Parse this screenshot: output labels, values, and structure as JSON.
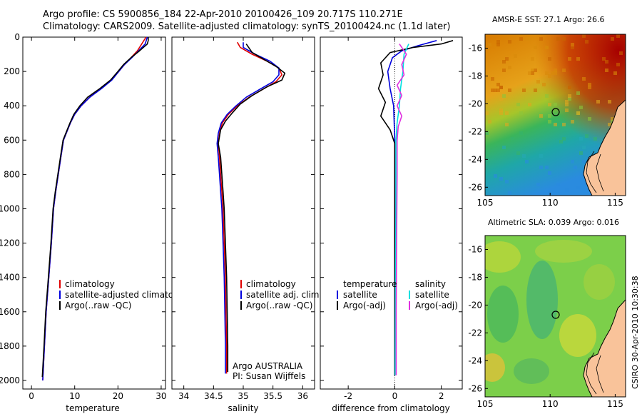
{
  "header": {
    "line1": "Argo profile: CS 5900856_184 22-Apr-2010 20100426_109 20.717S 110.271E",
    "line2": "Climatology: CARS2009. Satellite-adjusted climatology: synTS_20100424.nc (1.1d later)"
  },
  "colors": {
    "climatology": "#e00000",
    "satellite": "#0000dd",
    "argo": "#000000",
    "sat_salinity": "#00e0e0",
    "argo_salinity": "#e030e0",
    "land": "#f9c39a"
  },
  "chart_data": [
    {
      "type": "line",
      "name": "temperature-profile",
      "xlabel": "temperature",
      "xlim": [
        -2,
        31
      ],
      "ylim": [
        2050,
        0
      ],
      "xticks": [
        "0",
        "10",
        "20",
        "30"
      ],
      "yticks": [
        "0",
        "200",
        "400",
        "600",
        "800",
        "1000",
        "1200",
        "1400",
        "1600",
        "1800",
        "2000"
      ],
      "legend": [
        "climatology",
        "satellite-adjusted climatology",
        "Argo(..raw -QC)"
      ],
      "series": [
        {
          "name": "climatology",
          "color": "#e00000",
          "points": [
            [
              26.5,
              0
            ],
            [
              25.5,
              40
            ],
            [
              24.5,
              80
            ],
            [
              23,
              120
            ],
            [
              21.5,
              160
            ],
            [
              20.2,
              200
            ],
            [
              18.5,
              250
            ],
            [
              16,
              300
            ],
            [
              13.5,
              350
            ],
            [
              11.5,
              400
            ],
            [
              10,
              450
            ],
            [
              9,
              500
            ],
            [
              8.2,
              550
            ],
            [
              7.4,
              600
            ],
            [
              6.8,
              700
            ],
            [
              6.2,
              800
            ],
            [
              5.6,
              900
            ],
            [
              5.1,
              1000
            ],
            [
              4.6,
              1200
            ],
            [
              4,
              1400
            ],
            [
              3.4,
              1600
            ],
            [
              3.0,
              1800
            ],
            [
              2.6,
              2000
            ]
          ]
        },
        {
          "name": "satellite-adjusted climatology",
          "color": "#0000dd",
          "points": [
            [
              26.8,
              0
            ],
            [
              26.3,
              40
            ],
            [
              24.8,
              80
            ],
            [
              23.2,
              120
            ],
            [
              21.5,
              160
            ],
            [
              20.2,
              200
            ],
            [
              18.6,
              250
            ],
            [
              16.2,
              300
            ],
            [
              13.5,
              350
            ],
            [
              11.5,
              400
            ],
            [
              10,
              450
            ],
            [
              9,
              500
            ],
            [
              8.2,
              550
            ],
            [
              7.4,
              600
            ],
            [
              6.8,
              700
            ],
            [
              6.2,
              800
            ],
            [
              5.6,
              900
            ],
            [
              5.1,
              1000
            ],
            [
              4.6,
              1200
            ],
            [
              4,
              1400
            ],
            [
              3.4,
              1600
            ],
            [
              3.0,
              1800
            ],
            [
              2.6,
              2000
            ]
          ]
        },
        {
          "name": "Argo(..raw -QC)",
          "color": "#000000",
          "points": [
            [
              27,
              0
            ],
            [
              27,
              20
            ],
            [
              26.8,
              40
            ],
            [
              25,
              80
            ],
            [
              23,
              120
            ],
            [
              21.3,
              160
            ],
            [
              20,
              200
            ],
            [
              18.3,
              250
            ],
            [
              15.8,
              300
            ],
            [
              13,
              350
            ],
            [
              11.2,
              400
            ],
            [
              9.8,
              450
            ],
            [
              8.9,
              500
            ],
            [
              8.1,
              550
            ],
            [
              7.3,
              600
            ],
            [
              6.7,
              700
            ],
            [
              6.1,
              800
            ],
            [
              5.5,
              900
            ],
            [
              5.0,
              1000
            ],
            [
              4.5,
              1200
            ],
            [
              3.9,
              1400
            ],
            [
              3.3,
              1600
            ],
            [
              2.9,
              1800
            ],
            [
              2.5,
              1980
            ]
          ]
        }
      ]
    },
    {
      "type": "line",
      "name": "salinity-profile",
      "xlabel": "salinity",
      "xlim": [
        33.8,
        36.2
      ],
      "ylim": [
        2050,
        0
      ],
      "xticks": [
        "34",
        "34.5",
        "35",
        "35.5",
        "36"
      ],
      "legend": [
        "climatology",
        "satellite adj. clim.",
        "Argo(..raw -QC)"
      ],
      "annotations": [
        "Argo AUSTRALIA",
        "PI: Susan Wijffels"
      ],
      "series": [
        {
          "name": "climatology",
          "color": "#e00000",
          "points": [
            [
              34.9,
              30
            ],
            [
              34.95,
              60
            ],
            [
              35.15,
              100
            ],
            [
              35.4,
              140
            ],
            [
              35.6,
              180
            ],
            [
              35.65,
              220
            ],
            [
              35.55,
              260
            ],
            [
              35.35,
              300
            ],
            [
              35.1,
              350
            ],
            [
              34.9,
              400
            ],
            [
              34.75,
              450
            ],
            [
              34.65,
              500
            ],
            [
              34.6,
              560
            ],
            [
              34.58,
              620
            ],
            [
              34.6,
              700
            ],
            [
              34.62,
              800
            ],
            [
              34.64,
              900
            ],
            [
              34.66,
              1000
            ],
            [
              34.68,
              1200
            ],
            [
              34.7,
              1400
            ],
            [
              34.71,
              1600
            ],
            [
              34.72,
              1800
            ],
            [
              34.72,
              1960
            ]
          ]
        },
        {
          "name": "satellite adj. clim.",
          "color": "#0000dd",
          "points": [
            [
              35.0,
              30
            ],
            [
              35.0,
              60
            ],
            [
              35.2,
              100
            ],
            [
              35.45,
              140
            ],
            [
              35.6,
              180
            ],
            [
              35.6,
              220
            ],
            [
              35.5,
              260
            ],
            [
              35.3,
              300
            ],
            [
              35.05,
              350
            ],
            [
              34.88,
              400
            ],
            [
              34.73,
              450
            ],
            [
              34.63,
              500
            ],
            [
              34.58,
              560
            ],
            [
              34.56,
              620
            ],
            [
              34.58,
              700
            ],
            [
              34.6,
              800
            ],
            [
              34.62,
              900
            ],
            [
              34.64,
              1000
            ],
            [
              34.66,
              1200
            ],
            [
              34.68,
              1400
            ],
            [
              34.69,
              1600
            ],
            [
              34.7,
              1800
            ],
            [
              34.7,
              1960
            ]
          ]
        },
        {
          "name": "Argo(..raw -QC)",
          "color": "#000000",
          "points": [
            [
              35.05,
              40
            ],
            [
              35.15,
              90
            ],
            [
              35.35,
              130
            ],
            [
              35.55,
              170
            ],
            [
              35.7,
              210
            ],
            [
              35.65,
              250
            ],
            [
              35.4,
              290
            ],
            [
              35.15,
              340
            ],
            [
              34.95,
              390
            ],
            [
              34.82,
              440
            ],
            [
              34.7,
              490
            ],
            [
              34.62,
              540
            ],
            [
              34.58,
              620
            ],
            [
              34.62,
              700
            ],
            [
              34.64,
              800
            ],
            [
              34.66,
              900
            ],
            [
              34.68,
              1000
            ],
            [
              34.7,
              1200
            ],
            [
              34.72,
              1400
            ],
            [
              34.73,
              1600
            ],
            [
              34.74,
              1800
            ],
            [
              34.74,
              1950
            ]
          ]
        }
      ]
    },
    {
      "type": "line",
      "name": "difference-profile",
      "xlabel": "difference from climatology",
      "xlim": [
        -3.2,
        2.9
      ],
      "ylim": [
        2050,
        0
      ],
      "xticks": [
        "-2",
        "0",
        "2"
      ],
      "legend_left_title": "temperature",
      "legend_right_title": "salinity",
      "legend": [
        "satellite",
        "Argo(-adj)",
        "satellite",
        "Argo(-adj)"
      ],
      "series": [
        {
          "name": "temperature satellite",
          "color": "#0000dd",
          "points": [
            [
              1.8,
              20
            ],
            [
              1.0,
              50
            ],
            [
              0.3,
              80
            ],
            [
              -0.1,
              120
            ],
            [
              -0.3,
              200
            ],
            [
              -0.2,
              300
            ],
            [
              -0.05,
              400
            ],
            [
              0,
              600
            ],
            [
              0,
              1000
            ],
            [
              0,
              1500
            ],
            [
              0,
              1970
            ]
          ]
        },
        {
          "name": "temperature Argo(-adj)",
          "color": "#000000",
          "points": [
            [
              2.5,
              20
            ],
            [
              2.0,
              40
            ],
            [
              0.8,
              60
            ],
            [
              -0.2,
              90
            ],
            [
              -0.6,
              150
            ],
            [
              -0.5,
              220
            ],
            [
              -0.7,
              300
            ],
            [
              -0.4,
              380
            ],
            [
              -0.6,
              460
            ],
            [
              -0.2,
              540
            ],
            [
              0,
              620
            ],
            [
              0,
              900
            ],
            [
              0,
              1300
            ],
            [
              0,
              1700
            ],
            [
              0,
              1970
            ]
          ]
        },
        {
          "name": "salinity satellite",
          "color": "#00e0e0",
          "points": [
            [
              0.6,
              40
            ],
            [
              0.4,
              100
            ],
            [
              0.35,
              200
            ],
            [
              0.25,
              300
            ],
            [
              0.2,
              400
            ],
            [
              0.1,
              500
            ],
            [
              0.05,
              600
            ],
            [
              0.05,
              1000
            ],
            [
              0.03,
              1500
            ],
            [
              0.02,
              1970
            ]
          ]
        },
        {
          "name": "salinity Argo(-adj)",
          "color": "#e030e0",
          "points": [
            [
              0.2,
              40
            ],
            [
              0.5,
              100
            ],
            [
              0.3,
              160
            ],
            [
              0.4,
              220
            ],
            [
              0.1,
              280
            ],
            [
              0.3,
              340
            ],
            [
              0.1,
              400
            ],
            [
              0.3,
              460
            ],
            [
              0.15,
              520
            ],
            [
              0.1,
              600
            ],
            [
              0.1,
              800
            ],
            [
              0.08,
              1200
            ],
            [
              0.06,
              1600
            ],
            [
              0.06,
              1970
            ]
          ]
        }
      ]
    }
  ],
  "maps": {
    "sst": {
      "title": "AMSR-E SST: 27.1 Argo: 26.6",
      "xticks": [
        "105",
        "110",
        "115"
      ],
      "yticks": [
        "-16",
        "-18",
        "-20",
        "-22",
        "-24",
        "-26"
      ],
      "lon_range": [
        105,
        115.8
      ],
      "lat_range": [
        -15,
        -26.6
      ],
      "argo_position": [
        110.27,
        -20.72
      ]
    },
    "sla": {
      "title": "Altimetric SLA: 0.039 Argo: 0.016",
      "xticks": [
        "105",
        "110",
        "115"
      ],
      "yticks": [
        "-16",
        "-18",
        "-20",
        "-22",
        "-24",
        "-26"
      ],
      "lon_range": [
        105,
        115.8
      ],
      "lat_range": [
        -15,
        -26.6
      ],
      "argo_position": [
        110.27,
        -20.72
      ]
    }
  },
  "credit": "CSIRO 30-Apr-2010 10:30:38"
}
